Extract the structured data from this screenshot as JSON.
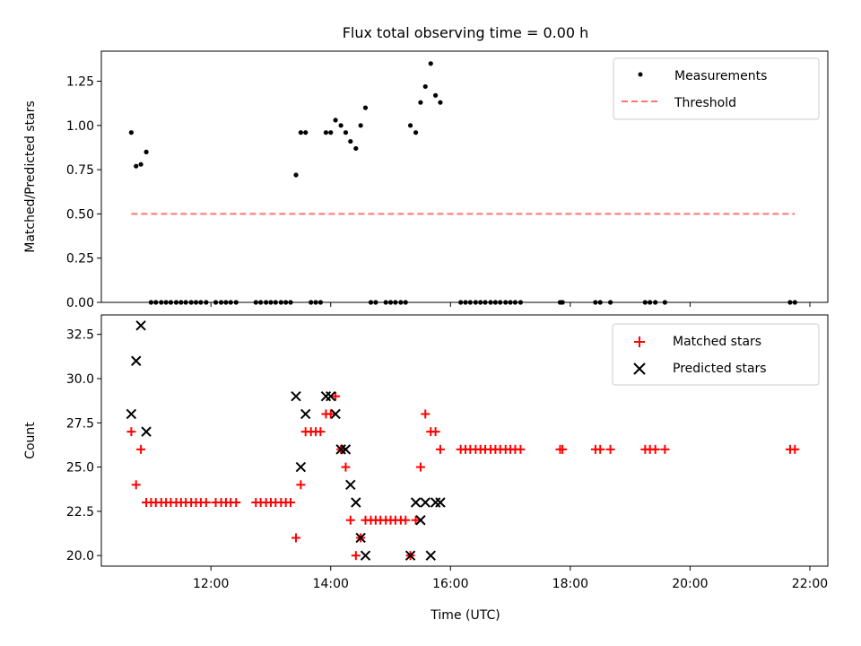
{
  "chart_data": [
    {
      "type": "scatter",
      "title": "Flux total observing time = 0.00 h",
      "xlabel": "",
      "ylabel": "Matched/Predicted stars",
      "xlim": [
        10.17,
        22.3
      ],
      "ylim": [
        0,
        1.42
      ],
      "y_ticks": [
        {
          "v": 0,
          "label": "0.00"
        },
        {
          "v": 0.25,
          "label": "0.25"
        },
        {
          "v": 0.5,
          "label": "0.50"
        },
        {
          "v": 0.75,
          "label": "0.75"
        },
        {
          "v": 1.0,
          "label": "1.00"
        },
        {
          "v": 1.25,
          "label": "1.25"
        }
      ],
      "x_ticks": [
        12,
        14,
        16,
        18,
        20,
        22
      ],
      "legend": "top-right",
      "grid": false,
      "series": [
        {
          "name": "Measurements",
          "marker": "dot",
          "color": "#000000",
          "points": [
            [
              10.67,
              0.96
            ],
            [
              10.75,
              0.77
            ],
            [
              10.83,
              0.78
            ],
            [
              10.92,
              0.85
            ],
            [
              11.0,
              0
            ],
            [
              11.08,
              0
            ],
            [
              11.17,
              0
            ],
            [
              11.25,
              0
            ],
            [
              11.33,
              0
            ],
            [
              11.42,
              0
            ],
            [
              11.5,
              0
            ],
            [
              11.58,
              0
            ],
            [
              11.67,
              0
            ],
            [
              11.75,
              0
            ],
            [
              11.83,
              0
            ],
            [
              11.92,
              0
            ],
            [
              12.08,
              0
            ],
            [
              12.17,
              0
            ],
            [
              12.25,
              0
            ],
            [
              12.33,
              0
            ],
            [
              12.42,
              0
            ],
            [
              12.75,
              0
            ],
            [
              12.83,
              0
            ],
            [
              12.92,
              0
            ],
            [
              13.0,
              0
            ],
            [
              13.08,
              0
            ],
            [
              13.17,
              0
            ],
            [
              13.25,
              0
            ],
            [
              13.33,
              0
            ],
            [
              13.42,
              0.72
            ],
            [
              13.5,
              0.96
            ],
            [
              13.58,
              0.96
            ],
            [
              13.67,
              0
            ],
            [
              13.75,
              0
            ],
            [
              13.83,
              0
            ],
            [
              13.92,
              0.96
            ],
            [
              14.0,
              0.96
            ],
            [
              14.08,
              1.03
            ],
            [
              14.17,
              1.0
            ],
            [
              14.25,
              0.96
            ],
            [
              14.33,
              0.91
            ],
            [
              14.42,
              0.87
            ],
            [
              14.5,
              1.0
            ],
            [
              14.58,
              1.1
            ],
            [
              14.67,
              0
            ],
            [
              14.75,
              0
            ],
            [
              14.92,
              0
            ],
            [
              15.0,
              0
            ],
            [
              15.08,
              0
            ],
            [
              15.17,
              0
            ],
            [
              15.25,
              0
            ],
            [
              15.33,
              1.0
            ],
            [
              15.42,
              0.96
            ],
            [
              15.5,
              1.13
            ],
            [
              15.58,
              1.22
            ],
            [
              15.67,
              1.35
            ],
            [
              15.75,
              1.17
            ],
            [
              15.83,
              1.13
            ],
            [
              16.17,
              0
            ],
            [
              16.25,
              0
            ],
            [
              16.33,
              0
            ],
            [
              16.42,
              0
            ],
            [
              16.5,
              0
            ],
            [
              16.58,
              0
            ],
            [
              16.67,
              0
            ],
            [
              16.75,
              0
            ],
            [
              16.83,
              0
            ],
            [
              16.92,
              0
            ],
            [
              17.0,
              0
            ],
            [
              17.08,
              0
            ],
            [
              17.17,
              0
            ],
            [
              17.83,
              0
            ],
            [
              17.87,
              0
            ],
            [
              18.42,
              0
            ],
            [
              18.5,
              0
            ],
            [
              18.67,
              0
            ],
            [
              19.25,
              0
            ],
            [
              19.33,
              0
            ],
            [
              19.42,
              0
            ],
            [
              19.58,
              0
            ],
            [
              21.67,
              0
            ],
            [
              21.75,
              0
            ]
          ]
        },
        {
          "name": "Threshold",
          "marker": "dashed-line",
          "color": "#ff7373",
          "points": [
            [
              10.67,
              0.5
            ],
            [
              21.75,
              0.5
            ]
          ]
        }
      ]
    },
    {
      "type": "scatter",
      "title": "",
      "xlabel": "Time (UTC)",
      "ylabel": "Count",
      "xlim": [
        10.17,
        22.3
      ],
      "ylim": [
        19.4,
        33.6
      ],
      "y_ticks": [
        {
          "v": 20,
          "label": "20.0"
        },
        {
          "v": 22.5,
          "label": "22.5"
        },
        {
          "v": 25,
          "label": "25.0"
        },
        {
          "v": 27.5,
          "label": "27.5"
        },
        {
          "v": 30,
          "label": "30.0"
        },
        {
          "v": 32.5,
          "label": "32.5"
        }
      ],
      "x_ticks": [
        12,
        14,
        16,
        18,
        20,
        22
      ],
      "x_tick_labels": [
        "12:00",
        "14:00",
        "16:00",
        "18:00",
        "20:00",
        "22:00"
      ],
      "legend": "top-right",
      "grid": false,
      "series": [
        {
          "name": "Matched stars",
          "marker": "plus",
          "color": "#ff0000",
          "points": [
            [
              10.67,
              27
            ],
            [
              10.75,
              24
            ],
            [
              10.83,
              26
            ],
            [
              10.92,
              23
            ],
            [
              11.0,
              23
            ],
            [
              11.08,
              23
            ],
            [
              11.17,
              23
            ],
            [
              11.25,
              23
            ],
            [
              11.33,
              23
            ],
            [
              11.42,
              23
            ],
            [
              11.5,
              23
            ],
            [
              11.58,
              23
            ],
            [
              11.67,
              23
            ],
            [
              11.75,
              23
            ],
            [
              11.83,
              23
            ],
            [
              11.92,
              23
            ],
            [
              12.08,
              23
            ],
            [
              12.17,
              23
            ],
            [
              12.25,
              23
            ],
            [
              12.33,
              23
            ],
            [
              12.42,
              23
            ],
            [
              12.75,
              23
            ],
            [
              12.83,
              23
            ],
            [
              12.92,
              23
            ],
            [
              13.0,
              23
            ],
            [
              13.08,
              23
            ],
            [
              13.17,
              23
            ],
            [
              13.25,
              23
            ],
            [
              13.33,
              23
            ],
            [
              13.42,
              21
            ],
            [
              13.5,
              24
            ],
            [
              13.58,
              27
            ],
            [
              13.67,
              27
            ],
            [
              13.75,
              27
            ],
            [
              13.83,
              27
            ],
            [
              13.92,
              28
            ],
            [
              14.0,
              28
            ],
            [
              14.08,
              29
            ],
            [
              14.17,
              26
            ],
            [
              14.25,
              25
            ],
            [
              14.33,
              22
            ],
            [
              14.42,
              20
            ],
            [
              14.5,
              21
            ],
            [
              14.58,
              22
            ],
            [
              14.67,
              22
            ],
            [
              14.75,
              22
            ],
            [
              14.83,
              22
            ],
            [
              14.92,
              22
            ],
            [
              15.0,
              22
            ],
            [
              15.08,
              22
            ],
            [
              15.17,
              22
            ],
            [
              15.25,
              22
            ],
            [
              15.33,
              20
            ],
            [
              15.42,
              22
            ],
            [
              15.5,
              25
            ],
            [
              15.58,
              28
            ],
            [
              15.67,
              27
            ],
            [
              15.75,
              27
            ],
            [
              15.83,
              26
            ],
            [
              16.17,
              26
            ],
            [
              16.25,
              26
            ],
            [
              16.33,
              26
            ],
            [
              16.42,
              26
            ],
            [
              16.5,
              26
            ],
            [
              16.58,
              26
            ],
            [
              16.67,
              26
            ],
            [
              16.75,
              26
            ],
            [
              16.83,
              26
            ],
            [
              16.92,
              26
            ],
            [
              17.0,
              26
            ],
            [
              17.08,
              26
            ],
            [
              17.17,
              26
            ],
            [
              17.83,
              26
            ],
            [
              17.87,
              26
            ],
            [
              18.42,
              26
            ],
            [
              18.5,
              26
            ],
            [
              18.67,
              26
            ],
            [
              19.25,
              26
            ],
            [
              19.33,
              26
            ],
            [
              19.42,
              26
            ],
            [
              19.58,
              26
            ],
            [
              21.67,
              26
            ],
            [
              21.75,
              26
            ]
          ]
        },
        {
          "name": "Predicted stars",
          "marker": "cross",
          "color": "#000000",
          "points": [
            [
              10.67,
              28
            ],
            [
              10.75,
              31
            ],
            [
              10.83,
              33
            ],
            [
              10.92,
              27
            ],
            [
              13.42,
              29
            ],
            [
              13.5,
              25
            ],
            [
              13.58,
              28
            ],
            [
              13.92,
              29
            ],
            [
              14.0,
              29
            ],
            [
              14.08,
              28
            ],
            [
              14.17,
              26
            ],
            [
              14.25,
              26
            ],
            [
              14.33,
              24
            ],
            [
              14.42,
              23
            ],
            [
              14.5,
              21
            ],
            [
              14.58,
              20
            ],
            [
              15.33,
              20
            ],
            [
              15.42,
              23
            ],
            [
              15.5,
              22
            ],
            [
              15.58,
              23
            ],
            [
              15.67,
              20
            ],
            [
              15.75,
              23
            ],
            [
              15.83,
              23
            ]
          ]
        }
      ]
    }
  ]
}
